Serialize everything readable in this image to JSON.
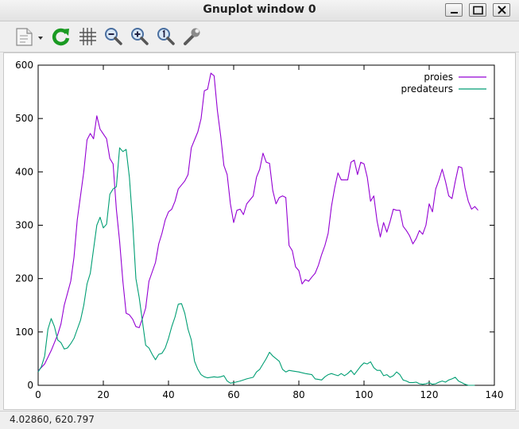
{
  "window": {
    "title": "Gnuplot window 0"
  },
  "toolbar": {
    "items": [
      {
        "icon": "copy-to-clipboard-icon"
      },
      {
        "icon": "replot-icon"
      },
      {
        "icon": "grid-icon"
      },
      {
        "icon": "zoom-previous-icon"
      },
      {
        "icon": "zoom-next-icon"
      },
      {
        "icon": "autoscale-icon"
      },
      {
        "icon": "options-wrench-icon"
      }
    ]
  },
  "status": {
    "coordinates": "4.02860,  620.797"
  },
  "colors": {
    "proies": "#9400d3",
    "predateurs": "#009e73"
  },
  "chart_data": {
    "type": "line",
    "title": "",
    "xlabel": "",
    "ylabel": "",
    "xlim": [
      0,
      140
    ],
    "ylim": [
      0,
      600
    ],
    "xticks": [
      "0",
      "20",
      "40",
      "60",
      "80",
      "100",
      "120",
      "140"
    ],
    "yticks": [
      "0",
      "100",
      "200",
      "300",
      "400",
      "500",
      "600"
    ],
    "grid": false,
    "legend_position": "top-right",
    "series": [
      {
        "name": "proies",
        "color": "#9400d3",
        "points": [
          [
            0,
            27
          ],
          [
            2,
            40
          ],
          [
            4,
            65
          ],
          [
            6,
            95
          ],
          [
            7,
            115
          ],
          [
            8,
            150
          ],
          [
            10,
            195
          ],
          [
            11,
            240
          ],
          [
            12,
            310
          ],
          [
            14,
            400
          ],
          [
            15,
            460
          ],
          [
            16,
            472
          ],
          [
            17,
            462
          ],
          [
            18,
            505
          ],
          [
            19,
            480
          ],
          [
            21,
            462
          ],
          [
            22,
            425
          ],
          [
            23,
            415
          ],
          [
            24,
            330
          ],
          [
            25,
            270
          ],
          [
            26,
            195
          ],
          [
            27,
            135
          ],
          [
            28,
            132
          ],
          [
            29,
            124
          ],
          [
            30,
            110
          ],
          [
            31,
            108
          ],
          [
            32,
            125
          ],
          [
            33,
            145
          ],
          [
            34,
            195
          ],
          [
            36,
            230
          ],
          [
            37,
            265
          ],
          [
            38,
            285
          ],
          [
            39,
            310
          ],
          [
            40,
            325
          ],
          [
            41,
            330
          ],
          [
            42,
            345
          ],
          [
            43,
            368
          ],
          [
            45,
            383
          ],
          [
            46,
            395
          ],
          [
            47,
            445
          ],
          [
            48,
            460
          ],
          [
            49,
            475
          ],
          [
            50,
            500
          ],
          [
            51,
            552
          ],
          [
            52,
            555
          ],
          [
            53,
            585
          ],
          [
            54,
            580
          ],
          [
            55,
            515
          ],
          [
            56,
            468
          ],
          [
            57,
            412
          ],
          [
            58,
            395
          ],
          [
            59,
            340
          ],
          [
            60,
            305
          ],
          [
            61,
            328
          ],
          [
            62,
            330
          ],
          [
            63,
            320
          ],
          [
            64,
            340
          ],
          [
            66,
            355
          ],
          [
            67,
            390
          ],
          [
            68,
            405
          ],
          [
            69,
            435
          ],
          [
            70,
            418
          ],
          [
            71,
            416
          ],
          [
            72,
            365
          ],
          [
            73,
            340
          ],
          [
            74,
            352
          ],
          [
            75,
            355
          ],
          [
            76,
            352
          ],
          [
            77,
            262
          ],
          [
            78,
            252
          ],
          [
            79,
            222
          ],
          [
            80,
            215
          ],
          [
            81,
            190
          ],
          [
            82,
            198
          ],
          [
            83,
            195
          ],
          [
            84,
            203
          ],
          [
            85,
            210
          ],
          [
            86,
            225
          ],
          [
            87,
            245
          ],
          [
            88,
            262
          ],
          [
            89,
            285
          ],
          [
            90,
            335
          ],
          [
            91,
            370
          ],
          [
            92,
            398
          ],
          [
            93,
            385
          ],
          [
            95,
            385
          ],
          [
            96,
            418
          ],
          [
            97,
            422
          ],
          [
            98,
            395
          ],
          [
            99,
            418
          ],
          [
            100,
            415
          ],
          [
            101,
            390
          ],
          [
            102,
            345
          ],
          [
            103,
            355
          ],
          [
            104,
            308
          ],
          [
            105,
            278
          ],
          [
            106,
            305
          ],
          [
            107,
            287
          ],
          [
            108,
            307
          ],
          [
            109,
            330
          ],
          [
            110,
            328
          ],
          [
            111,
            328
          ],
          [
            112,
            298
          ],
          [
            113,
            290
          ],
          [
            114,
            280
          ],
          [
            115,
            265
          ],
          [
            116,
            275
          ],
          [
            117,
            290
          ],
          [
            118,
            283
          ],
          [
            119,
            300
          ],
          [
            120,
            340
          ],
          [
            121,
            325
          ],
          [
            122,
            368
          ],
          [
            123,
            385
          ],
          [
            124,
            405
          ],
          [
            125,
            382
          ],
          [
            126,
            355
          ],
          [
            127,
            350
          ],
          [
            128,
            382
          ],
          [
            129,
            410
          ],
          [
            130,
            408
          ],
          [
            131,
            370
          ],
          [
            132,
            345
          ],
          [
            133,
            330
          ],
          [
            134,
            335
          ],
          [
            135,
            328
          ]
        ]
      },
      {
        "name": "predateurs",
        "color": "#009e73",
        "points": [
          [
            0,
            25
          ],
          [
            1,
            35
          ],
          [
            2,
            55
          ],
          [
            3,
            105
          ],
          [
            4,
            125
          ],
          [
            5,
            110
          ],
          [
            6,
            85
          ],
          [
            7,
            80
          ],
          [
            8,
            68
          ],
          [
            9,
            70
          ],
          [
            10,
            78
          ],
          [
            11,
            88
          ],
          [
            12,
            105
          ],
          [
            13,
            122
          ],
          [
            14,
            150
          ],
          [
            15,
            190
          ],
          [
            16,
            210
          ],
          [
            17,
            255
          ],
          [
            18,
            300
          ],
          [
            19,
            315
          ],
          [
            20,
            295
          ],
          [
            21,
            302
          ],
          [
            22,
            358
          ],
          [
            23,
            368
          ],
          [
            24,
            372
          ],
          [
            25,
            445
          ],
          [
            26,
            438
          ],
          [
            27,
            442
          ],
          [
            28,
            390
          ],
          [
            29,
            305
          ],
          [
            30,
            200
          ],
          [
            31,
            165
          ],
          [
            32,
            120
          ],
          [
            33,
            75
          ],
          [
            34,
            70
          ],
          [
            35,
            58
          ],
          [
            36,
            48
          ],
          [
            37,
            58
          ],
          [
            38,
            60
          ],
          [
            39,
            70
          ],
          [
            40,
            88
          ],
          [
            41,
            110
          ],
          [
            42,
            128
          ],
          [
            43,
            152
          ],
          [
            44,
            153
          ],
          [
            45,
            135
          ],
          [
            46,
            105
          ],
          [
            47,
            85
          ],
          [
            48,
            45
          ],
          [
            49,
            30
          ],
          [
            50,
            20
          ],
          [
            51,
            16
          ],
          [
            52,
            14
          ],
          [
            53,
            15
          ],
          [
            54,
            16
          ],
          [
            55,
            15
          ],
          [
            56,
            16
          ],
          [
            57,
            18
          ],
          [
            58,
            8
          ],
          [
            59,
            4
          ],
          [
            60,
            5
          ],
          [
            62,
            8
          ],
          [
            64,
            12
          ],
          [
            66,
            15
          ],
          [
            67,
            25
          ],
          [
            68,
            30
          ],
          [
            69,
            40
          ],
          [
            70,
            50
          ],
          [
            71,
            62
          ],
          [
            72,
            55
          ],
          [
            73,
            50
          ],
          [
            74,
            45
          ],
          [
            75,
            30
          ],
          [
            76,
            25
          ],
          [
            77,
            28
          ],
          [
            78,
            27
          ],
          [
            80,
            25
          ],
          [
            82,
            22
          ],
          [
            84,
            20
          ],
          [
            85,
            12
          ],
          [
            86,
            11
          ],
          [
            87,
            10
          ],
          [
            88,
            16
          ],
          [
            89,
            20
          ],
          [
            90,
            22
          ],
          [
            91,
            20
          ],
          [
            92,
            18
          ],
          [
            93,
            22
          ],
          [
            94,
            18
          ],
          [
            95,
            22
          ],
          [
            96,
            28
          ],
          [
            97,
            20
          ],
          [
            98,
            28
          ],
          [
            99,
            36
          ],
          [
            100,
            42
          ],
          [
            101,
            40
          ],
          [
            102,
            44
          ],
          [
            103,
            33
          ],
          [
            104,
            28
          ],
          [
            105,
            28
          ],
          [
            106,
            18
          ],
          [
            107,
            20
          ],
          [
            108,
            15
          ],
          [
            109,
            18
          ],
          [
            110,
            25
          ],
          [
            111,
            20
          ],
          [
            112,
            10
          ],
          [
            113,
            8
          ],
          [
            114,
            5
          ],
          [
            115,
            5
          ],
          [
            116,
            6
          ],
          [
            117,
            3
          ],
          [
            118,
            2
          ],
          [
            119,
            3
          ],
          [
            120,
            5
          ],
          [
            121,
            2
          ],
          [
            122,
            3
          ],
          [
            123,
            6
          ],
          [
            124,
            8
          ],
          [
            125,
            6
          ],
          [
            126,
            10
          ],
          [
            127,
            12
          ],
          [
            128,
            15
          ],
          [
            129,
            8
          ],
          [
            130,
            5
          ],
          [
            131,
            2
          ],
          [
            132,
            0
          ],
          [
            133,
            0
          ],
          [
            134,
            0
          ]
        ]
      }
    ]
  }
}
